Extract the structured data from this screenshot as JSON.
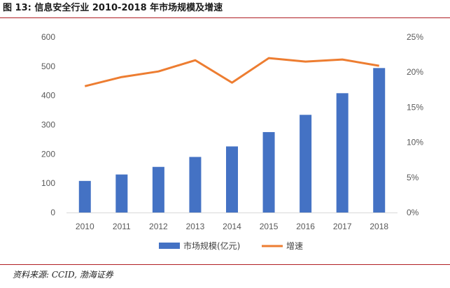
{
  "header": {
    "title": "图 13:  信息安全行业 2010-2018 年市场规模及增速"
  },
  "footer": {
    "source": "资料来源: CCID, 渤海证券"
  },
  "colors": {
    "bar": "#4472c4",
    "line": "#ed7d31",
    "rule": "#b01e23"
  },
  "chart_data": {
    "type": "bar+line",
    "title": "信息安全行业 2010-2018 年市场规模及增速",
    "categories": [
      "2010",
      "2011",
      "2012",
      "2013",
      "2014",
      "2015",
      "2016",
      "2017",
      "2018"
    ],
    "series": [
      {
        "name": "市场规模(亿元)",
        "type": "bar",
        "axis": "left",
        "values": [
          108,
          130,
          156,
          190,
          226,
          275,
          334,
          408,
          494
        ]
      },
      {
        "name": "增速",
        "type": "line",
        "axis": "right",
        "values": [
          0.18,
          0.193,
          0.201,
          0.217,
          0.185,
          0.22,
          0.215,
          0.218,
          0.209
        ]
      }
    ],
    "y_left": {
      "min": 0,
      "max": 600,
      "ticks": [
        "0",
        "100",
        "200",
        "300",
        "400",
        "500",
        "600"
      ]
    },
    "y_right": {
      "min": 0,
      "max": 0.25,
      "ticks": [
        "0%",
        "5%",
        "10%",
        "15%",
        "20%",
        "25%"
      ]
    },
    "legend": [
      "市场规模(亿元)",
      "增速"
    ],
    "legend_position": "bottom",
    "grid": false
  }
}
